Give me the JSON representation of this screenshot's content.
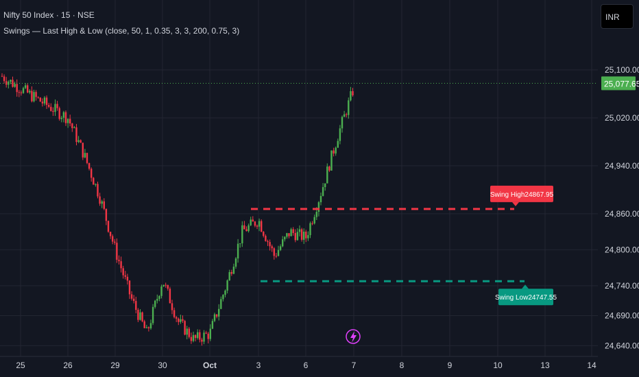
{
  "header": {
    "title": "Nifty 50 Index · 15 · NSE",
    "indicator": "Swings — Last High & Low  (close, 50, 1, 0.35, 3, 3, 200, 0.75, 3)",
    "currency": "INR"
  },
  "colors": {
    "background": "#131722",
    "grid": "#232632",
    "up": "#4caf50",
    "down": "#f23645",
    "swing_high": "#f23645",
    "swing_low": "#089981",
    "last_price": "#4caf50",
    "flash": "#e040fb"
  },
  "icons": {
    "flash": "lightning-icon"
  },
  "chart_data": {
    "type": "candlestick",
    "symbol": "Nifty 50 Index",
    "timeframe": "15",
    "exchange": "NSE",
    "y_ticks": [
      "25,100.00",
      "25,020.00",
      "24,940.00",
      "24,860.00",
      "24,800.00",
      "24,740.00",
      "24,690.00",
      "24,640.00"
    ],
    "x_ticks": [
      "25",
      "26",
      "29",
      "30",
      "Oct",
      "3",
      "6",
      "7",
      "8",
      "9",
      "10",
      "13",
      "14"
    ],
    "last_price": "25,077.65",
    "swing_high": {
      "label": "Swing High",
      "value": "24867.95"
    },
    "swing_low": {
      "label": "Swing Low",
      "value": "24747.55"
    },
    "price_path": [
      [
        "25",
        25090
      ],
      [
        "25",
        25060
      ],
      [
        "26",
        25020
      ],
      [
        "26",
        24960
      ],
      [
        "26",
        24890
      ],
      [
        "29",
        24800
      ],
      [
        "29",
        24720
      ],
      [
        "29",
        24660
      ],
      [
        "30",
        24750
      ],
      [
        "30",
        24680
      ],
      [
        "30",
        24650
      ],
      [
        "Oct",
        24660
      ],
      [
        "Oct",
        24740
      ],
      [
        "Oct",
        24830
      ],
      [
        "3",
        24850
      ],
      [
        "3",
        24790
      ],
      [
        "3",
        24830
      ],
      [
        "6",
        24820
      ],
      [
        "6",
        24900
      ],
      [
        "6",
        24990
      ],
      [
        "7",
        25070
      ],
      [
        "7",
        25078
      ]
    ]
  }
}
